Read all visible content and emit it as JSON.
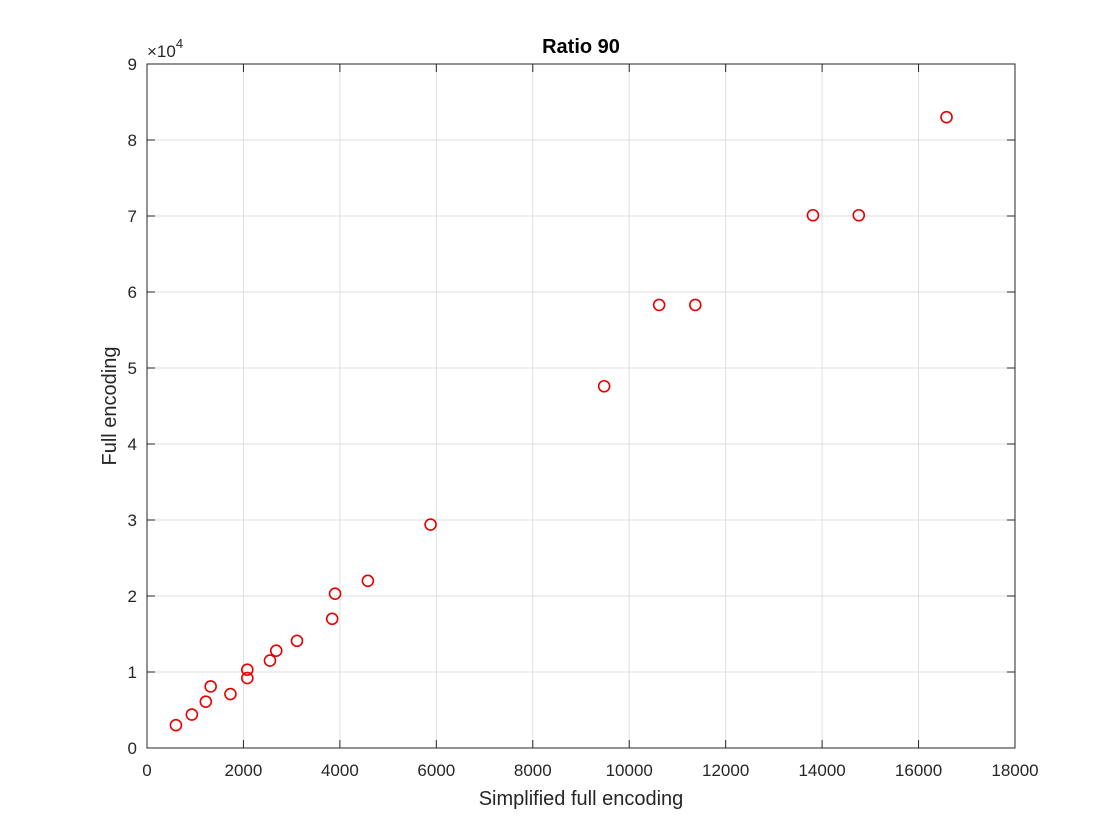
{
  "chart_data": {
    "type": "scatter",
    "title": "Ratio 90",
    "xlabel": "Simplified full encoding",
    "ylabel": "Full encoding",
    "xlim": [
      0,
      18000
    ],
    "ylim": [
      0,
      90000
    ],
    "y_exponent_base": "×10",
    "y_exponent_power": "4",
    "grid": true,
    "marker": "circle",
    "marker_color": "#e60000",
    "x_ticks": [
      0,
      2000,
      4000,
      6000,
      8000,
      10000,
      12000,
      14000,
      16000,
      18000
    ],
    "x_tick_labels": [
      "0",
      "2000",
      "4000",
      "6000",
      "8000",
      "10000",
      "12000",
      "14000",
      "16000",
      "18000"
    ],
    "y_ticks": [
      0,
      10000,
      20000,
      30000,
      40000,
      50000,
      60000,
      70000,
      80000,
      90000
    ],
    "y_tick_labels": [
      "0",
      "1",
      "2",
      "3",
      "4",
      "5",
      "6",
      "7",
      "8",
      "9"
    ],
    "points": [
      {
        "x": 600,
        "y": 3000
      },
      {
        "x": 930,
        "y": 4400
      },
      {
        "x": 1220,
        "y": 6100
      },
      {
        "x": 1320,
        "y": 8100
      },
      {
        "x": 1730,
        "y": 7100
      },
      {
        "x": 2080,
        "y": 9200
      },
      {
        "x": 2080,
        "y": 10300
      },
      {
        "x": 2550,
        "y": 11500
      },
      {
        "x": 2680,
        "y": 12800
      },
      {
        "x": 3110,
        "y": 14100
      },
      {
        "x": 3840,
        "y": 17000
      },
      {
        "x": 3900,
        "y": 20300
      },
      {
        "x": 4580,
        "y": 22000
      },
      {
        "x": 5880,
        "y": 29400
      },
      {
        "x": 9480,
        "y": 47600
      },
      {
        "x": 10620,
        "y": 58300
      },
      {
        "x": 11370,
        "y": 58300
      },
      {
        "x": 13810,
        "y": 70100
      },
      {
        "x": 14760,
        "y": 70100
      },
      {
        "x": 16580,
        "y": 83000
      }
    ]
  }
}
